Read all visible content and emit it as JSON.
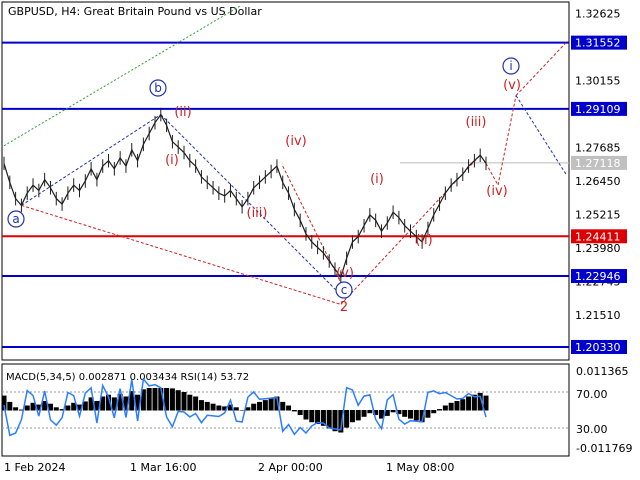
{
  "header": {
    "title": "GBPUSD, H4:  Great Britain Pound vs US Dollar"
  },
  "indicator": {
    "label": "MACD(5,34,5) 0.002871 0.003434 RSI(14) 53.72",
    "axis_labels": [
      "0.011365",
      "70.00",
      "30.00",
      "-0.011769"
    ]
  },
  "colors": {
    "price_line": "#1e1e1e",
    "level_blue": "#0000cc",
    "level_red": "#dd0000",
    "label_blue_bg": "#0000cc",
    "label_red_bg": "#dd0000",
    "current_price_bg": "#c0c0c0",
    "wave_red": "#cc2222",
    "wave_blue": "#2233aa",
    "rsi_line": "#2a7fff",
    "grid_green_dotted": "#2aa02a"
  },
  "chart_data": {
    "type": "line",
    "symbol": "GBPUSD",
    "timeframe": "H4",
    "title": "GBPUSD, H4:  Great Britain Pound vs US Dollar",
    "x_tick_labels": [
      "1 Feb 2024",
      "1 Mar 16:00",
      "2 Apr 00:00",
      "1 May 08:00"
    ],
    "y_tick_labels": [
      "1.32625",
      "1.30155",
      "1.27685",
      "1.26450",
      "1.25215",
      "1.23980",
      "1.22745",
      "1.21510",
      "1.20330"
    ],
    "ylim": [
      1.1985,
      1.3305
    ],
    "current_price": "1.27118",
    "levels": [
      {
        "value": 1.31552,
        "label": "1.31552",
        "color": "blue"
      },
      {
        "value": 1.29109,
        "label": "1.29109",
        "color": "blue"
      },
      {
        "value": 1.24411,
        "label": "1.24411",
        "color": "red"
      },
      {
        "value": 1.22946,
        "label": "1.22946",
        "color": "blue"
      },
      {
        "value": 1.2033,
        "label": "1.20330",
        "color": "blue"
      }
    ],
    "price_series": [
      1.271,
      1.264,
      1.258,
      1.2555,
      1.26,
      1.263,
      1.261,
      1.265,
      1.262,
      1.258,
      1.256,
      1.26,
      1.263,
      1.261,
      1.2645,
      1.269,
      1.265,
      1.27,
      1.272,
      1.269,
      1.273,
      1.27,
      1.276,
      1.272,
      1.278,
      1.282,
      1.286,
      1.289,
      1.285,
      1.279,
      1.277,
      1.275,
      1.272,
      1.27,
      1.266,
      1.264,
      1.262,
      1.26,
      1.259,
      1.261,
      1.258,
      1.255,
      1.258,
      1.262,
      1.264,
      1.266,
      1.268,
      1.27,
      1.264,
      1.26,
      1.254,
      1.25,
      1.245,
      1.242,
      1.24,
      1.238,
      1.235,
      1.232,
      1.229,
      1.236,
      1.242,
      1.244,
      1.248,
      1.252,
      1.25,
      1.246,
      1.249,
      1.253,
      1.251,
      1.248,
      1.246,
      1.244,
      1.242,
      1.247,
      1.252,
      1.256,
      1.26,
      1.263,
      1.265,
      1.267,
      1.27,
      1.272,
      1.274,
      1.271
    ],
    "wave_labels": [
      {
        "text": "a",
        "style": "blue-circle"
      },
      {
        "text": "b",
        "style": "blue-circle"
      },
      {
        "text": "c",
        "style": "blue-circle"
      },
      {
        "text": "i",
        "style": "blue-circle"
      },
      {
        "text": "(i)",
        "style": "red"
      },
      {
        "text": "(ii)",
        "style": "red"
      },
      {
        "text": "(iii)",
        "style": "red"
      },
      {
        "text": "(iv)",
        "style": "red"
      },
      {
        "text": "(v)",
        "style": "red"
      },
      {
        "text": "(i)",
        "style": "red"
      },
      {
        "text": "(ii)",
        "style": "red"
      },
      {
        "text": "(iii)",
        "style": "red"
      },
      {
        "text": "(iv)",
        "style": "red"
      },
      {
        "text": "(v)",
        "style": "red"
      },
      {
        "text": "2",
        "style": "red-plain"
      }
    ]
  }
}
